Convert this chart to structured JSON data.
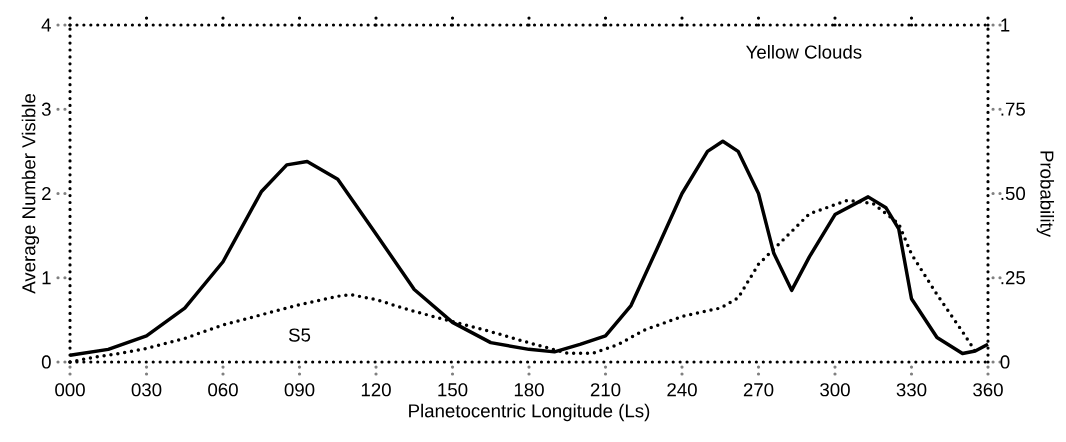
{
  "chart_data": {
    "type": "line",
    "title": "Yellow Clouds",
    "xlabel": "Planetocentric Longitude (Ls)",
    "ylabel": "Average Number Visible",
    "y2label": "Probability",
    "xlim": [
      0,
      360
    ],
    "ylim": [
      0,
      4
    ],
    "y2lim": [
      0,
      1
    ],
    "xticks": [
      {
        "value": 0,
        "label": "000"
      },
      {
        "value": 30,
        "label": "030"
      },
      {
        "value": 60,
        "label": "060"
      },
      {
        "value": 90,
        "label": "090"
      },
      120,
      150,
      180,
      210,
      240,
      270,
      300,
      330,
      360
    ],
    "yticks": [
      0,
      1,
      2,
      3,
      4
    ],
    "y2ticks": [
      0,
      {
        "value": 0.25,
        "label": ".25"
      },
      {
        "value": 0.5,
        "label": ".50"
      },
      {
        "value": 0.75,
        "label": ".75"
      },
      1
    ],
    "series": [
      {
        "color": "#000000",
        "line_style": "solid",
        "x": [
          0,
          15,
          30,
          45,
          60,
          75,
          85,
          93,
          105,
          120,
          135,
          150,
          165,
          180,
          190,
          200,
          210,
          220,
          230,
          240,
          250,
          256,
          262,
          270,
          276,
          283,
          290,
          300,
          313,
          320,
          325,
          330,
          340,
          350,
          355,
          360
        ],
        "values": [
          0.08,
          0.15,
          0.31,
          0.64,
          1.19,
          2.02,
          2.34,
          2.38,
          2.17,
          1.52,
          0.86,
          0.47,
          0.23,
          0.15,
          0.12,
          0.21,
          0.31,
          0.67,
          1.33,
          2.0,
          2.5,
          2.62,
          2.5,
          2.0,
          1.29,
          0.85,
          1.25,
          1.75,
          1.96,
          1.83,
          1.58,
          0.75,
          0.29,
          0.1,
          0.13,
          0.21
        ]
      },
      {
        "color": "#000000",
        "line_style": "dotted",
        "axis": "y2",
        "x": [
          0,
          10,
          20,
          30,
          45,
          60,
          75,
          90,
          105,
          110,
          120,
          135,
          150,
          165,
          180,
          195,
          205,
          215,
          225,
          240,
          255,
          262,
          270,
          280,
          290,
          305,
          315,
          325,
          330,
          340,
          350,
          356
        ],
        "values": [
          0,
          0.015,
          0.026,
          0.04,
          0.07,
          0.11,
          0.14,
          0.17,
          0.195,
          0.2,
          0.185,
          0.15,
          0.12,
          0.09,
          0.057,
          0.026,
          0.026,
          0.052,
          0.094,
          0.135,
          0.16,
          0.19,
          0.29,
          0.365,
          0.44,
          0.48,
          0.47,
          0.41,
          0.32,
          0.2,
          0.09,
          0.02
        ]
      }
    ],
    "annotations": [
      "S5"
    ]
  }
}
